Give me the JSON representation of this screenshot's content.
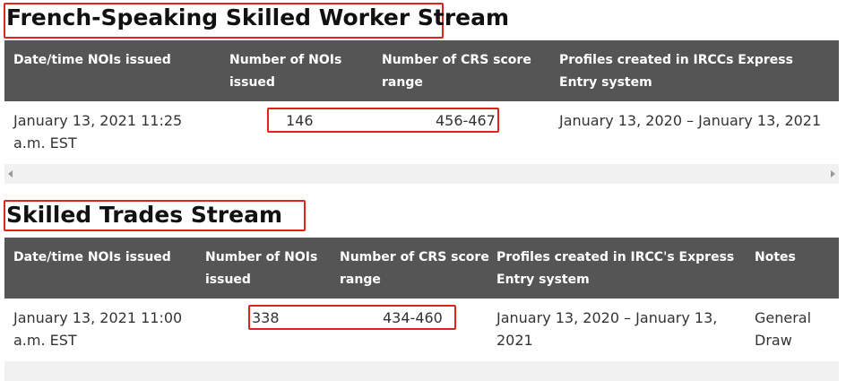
{
  "sections": [
    {
      "title": "French-Speaking Skilled Worker Stream",
      "headers": [
        "Date/time NOIs issued",
        "Number of NOIs issued",
        "Number of CRS score range",
        "Profiles created in IRCCs Express Entry system"
      ],
      "rows": [
        [
          "January 13, 2021 11:25 a.m. EST",
          146,
          "456-467",
          "January 13, 2020 – January 13, 2021"
        ]
      ]
    },
    {
      "title": "Skilled Trades Stream",
      "headers": [
        "Date/time NOIs issued",
        "Number of NOIs issued",
        "Number of CRS score range",
        "Profiles created in IRCC's Express Entry system",
        "Notes"
      ],
      "rows": [
        [
          "January 13, 2021 11:00 a.m. EST",
          338,
          "434-460",
          "January 13, 2020 – January 13, 2021",
          "General Draw"
        ]
      ]
    }
  ]
}
